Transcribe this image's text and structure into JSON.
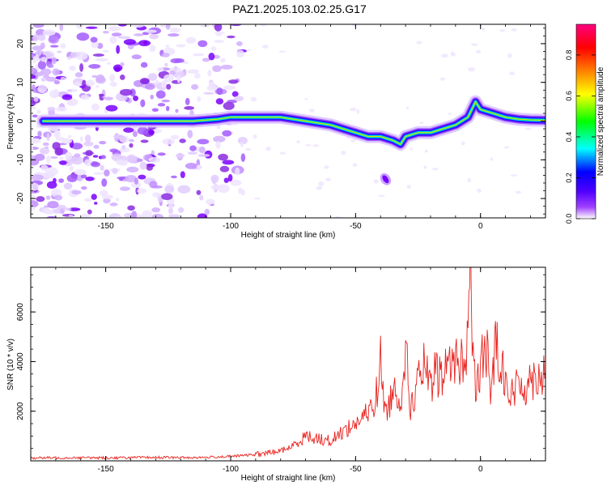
{
  "title": "PAZ1.2025.103.02.25.G17",
  "chart_data": [
    {
      "type": "heatmap",
      "title": "PAZ1.2025.103.02.25.G17",
      "xlabel": "Height of straight line (km)",
      "ylabel": "Frequency (Hz)",
      "xlim": [
        -180,
        26
      ],
      "ylim": [
        -25,
        25
      ],
      "xticks": [
        -150,
        -100,
        -50,
        0
      ],
      "yticks": [
        -20,
        -10,
        0,
        10,
        20
      ],
      "colorbar": {
        "label": "Normalized spectral amplitude",
        "range": [
          0,
          0.95
        ],
        "ticks": [
          0.0,
          0.2,
          0.4,
          0.6,
          0.8
        ],
        "colors": [
          "#ffffff",
          "#7f00ff",
          "#0000ff",
          "#00ffff",
          "#00ff00",
          "#ffff00",
          "#ff8000",
          "#ff0000",
          "#ff0080"
        ]
      },
      "ridge": {
        "x": [
          -175,
          -165,
          -155,
          -145,
          -135,
          -125,
          -115,
          -105,
          -100,
          -90,
          -80,
          -75,
          -70,
          -65,
          -60,
          -55,
          -50,
          -45,
          -40,
          -35,
          -32,
          -30,
          -25,
          -20,
          -15,
          -10,
          -5,
          -2,
          0,
          5,
          10,
          15,
          20,
          26
        ],
        "y": [
          0,
          0,
          0,
          0,
          0,
          0,
          0,
          0.5,
          1,
          1,
          1,
          0.5,
          0,
          -0.5,
          -1,
          -2,
          -3,
          -4,
          -4,
          -5,
          -6,
          -4,
          -3,
          -3,
          -2,
          -1,
          1,
          5,
          3,
          2,
          1,
          0.5,
          0.3,
          0.2
        ]
      },
      "spot": {
        "x": -38,
        "y": -15
      }
    },
    {
      "type": "line",
      "xlabel": "Height of straight line (km)",
      "ylabel": "SNR (10 * v/v)",
      "xlim": [
        -180,
        26
      ],
      "ylim": [
        0,
        7800
      ],
      "xticks": [
        -150,
        -100,
        -50,
        0
      ],
      "yticks": [
        2000,
        4000,
        6000
      ],
      "color": "#e8231f",
      "series": [
        {
          "x": [
            -180,
            -170,
            -160,
            -150,
            -140,
            -130,
            -120,
            -110,
            -100,
            -90,
            -80,
            -75,
            -70,
            -65,
            -60,
            -55,
            -50,
            -45,
            -42,
            -41,
            -40,
            -38,
            -35,
            -32,
            -30,
            -28,
            -25,
            -22,
            -20,
            -18,
            -15,
            -12,
            -10,
            -8,
            -6,
            -5,
            -4,
            -3,
            -2,
            0,
            2,
            4,
            6,
            8,
            10,
            12,
            15,
            18,
            20,
            24,
            26
          ],
          "y": [
            120,
            120,
            130,
            120,
            130,
            140,
            130,
            140,
            180,
            250,
            400,
            600,
            1000,
            900,
            800,
            1200,
            1500,
            1900,
            2500,
            3100,
            4000,
            1800,
            2900,
            2500,
            4500,
            2100,
            3200,
            3900,
            2700,
            3600,
            3300,
            4300,
            3900,
            4200,
            3600,
            6100,
            7800,
            4300,
            2700,
            3600,
            5100,
            2500,
            4900,
            4000,
            3500,
            2500,
            3100,
            3000,
            3300,
            3500,
            3600
          ]
        }
      ]
    }
  ]
}
